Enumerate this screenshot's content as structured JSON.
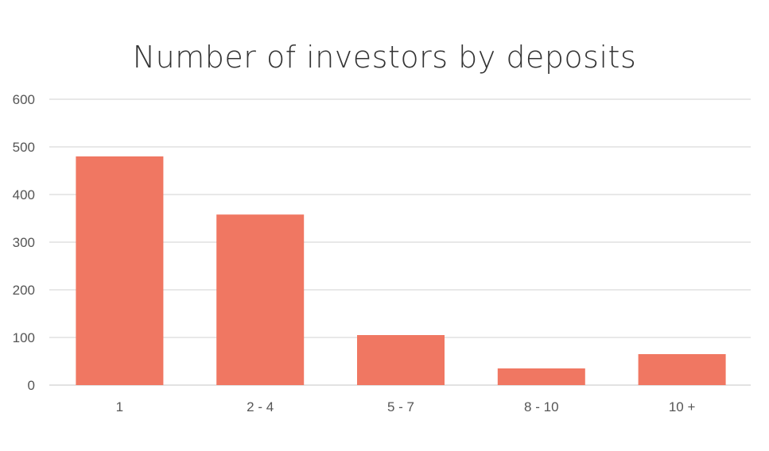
{
  "chart_data": {
    "type": "bar",
    "title": "Number of investors by deposits",
    "xlabel": "",
    "ylabel": "",
    "categories": [
      "1",
      "2 - 4",
      "5 - 7",
      "8 - 10",
      "10 +"
    ],
    "values": [
      480,
      358,
      105,
      35,
      65
    ],
    "ylim": [
      0,
      600
    ],
    "yticks": [
      "0",
      "100",
      "200",
      "300",
      "400",
      "500",
      "600"
    ],
    "grid": true,
    "legend": "none",
    "bar_color": "#F07762",
    "grid_color": "#D9D9D9"
  }
}
